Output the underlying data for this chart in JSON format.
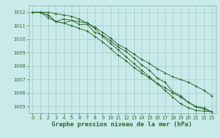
{
  "x": [
    0,
    1,
    2,
    3,
    4,
    5,
    6,
    7,
    8,
    9,
    10,
    11,
    12,
    13,
    14,
    15,
    16,
    17,
    18,
    19,
    20,
    21,
    22,
    23
  ],
  "series": [
    [
      1012.0,
      1012.0,
      1011.8,
      1011.3,
      1011.2,
      1011.4,
      1011.1,
      1011.1,
      1010.5,
      1010.3,
      1009.9,
      1009.4,
      1009.1,
      1008.6,
      1008.1,
      1007.7,
      1007.1,
      1006.8,
      1006.1,
      1005.8,
      1005.3,
      1005.0,
      1004.9,
      1004.6
    ],
    [
      1012.0,
      1012.0,
      1011.8,
      1011.3,
      1011.5,
      1011.4,
      1011.3,
      1011.2,
      1010.9,
      1010.5,
      1010.1,
      1009.6,
      1009.3,
      1008.9,
      1008.5,
      1008.2,
      1007.8,
      1007.5,
      1007.2,
      1007.0,
      1006.8,
      1006.5,
      1006.2,
      1005.8
    ],
    [
      1012.0,
      1012.0,
      1011.6,
      1011.3,
      1011.2,
      1011.0,
      1010.8,
      1010.6,
      1010.2,
      1009.8,
      1009.3,
      1008.8,
      1008.4,
      1007.9,
      1007.5,
      1007.1,
      1006.7,
      1006.4,
      1006.0,
      1005.7,
      1005.3,
      1004.95,
      1004.8,
      1004.6
    ],
    [
      1012.0,
      1012.0,
      1012.0,
      1011.9,
      1011.8,
      1011.7,
      1011.5,
      1011.2,
      1010.8,
      1010.2,
      1009.7,
      1009.2,
      1008.7,
      1008.2,
      1007.7,
      1007.2,
      1006.7,
      1006.2,
      1005.7,
      1005.2,
      1004.9,
      1004.7,
      1004.65,
      1004.6
    ]
  ],
  "line_color": "#2d6a2d",
  "marker": "+",
  "marker_size": 3,
  "bg_color": "#c8eaea",
  "grid_color": "#a0c8c8",
  "text_color": "#2d6a2d",
  "xlabel": "Graphe pression niveau de la mer (hPa)",
  "ylim_min": 1004.5,
  "ylim_max": 1012.5,
  "xlim_min": -0.5,
  "xlim_max": 23.5,
  "yticks": [
    1005,
    1006,
    1007,
    1008,
    1009,
    1010,
    1011,
    1012
  ],
  "xticks": [
    0,
    1,
    2,
    3,
    4,
    5,
    6,
    7,
    8,
    9,
    10,
    11,
    12,
    13,
    14,
    15,
    16,
    17,
    18,
    19,
    20,
    21,
    22,
    23
  ],
  "tick_fontsize": 5.0,
  "xlabel_fontsize": 6.5,
  "linewidth": 0.7,
  "markeredgewidth": 0.7
}
